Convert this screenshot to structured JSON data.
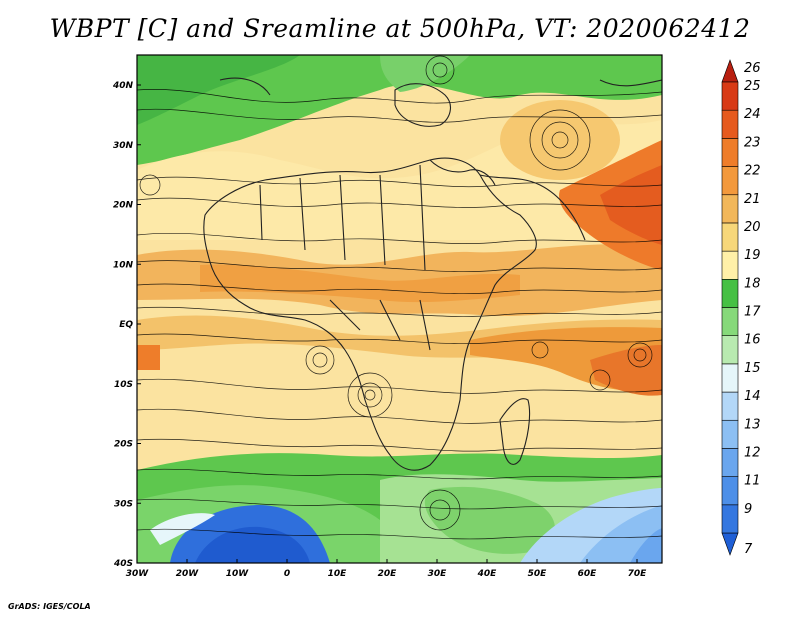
{
  "title": "WBPT [C] and Sreamline at 500hPa, VT: 2020062412",
  "footer": "GrADS: IGES/COLA",
  "map": {
    "lon_labels": [
      "30W",
      "20W",
      "10W",
      "0",
      "10E",
      "20E",
      "30E",
      "40E",
      "50E",
      "60E",
      "70E"
    ],
    "lat_labels": [
      "40N",
      "30N",
      "20N",
      "10N",
      "EQ",
      "10S",
      "20S",
      "30S",
      "40S"
    ],
    "lon_range": [
      -30,
      75
    ],
    "lat_range": [
      -40,
      45
    ]
  },
  "colorbar": {
    "labels": [
      "7",
      "9",
      "11",
      "12",
      "13",
      "14",
      "15",
      "16",
      "17",
      "18",
      "19",
      "20",
      "21",
      "22",
      "23",
      "24",
      "25",
      "26"
    ],
    "colors": [
      "#1f5fd6",
      "#3477e0",
      "#4d8fe8",
      "#6aa6ee",
      "#8cbff3",
      "#b3d7f8",
      "#e6f6fa",
      "#b8eab0",
      "#86d97a",
      "#46c044",
      "#fff0a8",
      "#f7d77a",
      "#f2b75a",
      "#f3993c",
      "#ef7d2a",
      "#e65a1e",
      "#d83a16",
      "#b81f10"
    ]
  }
}
